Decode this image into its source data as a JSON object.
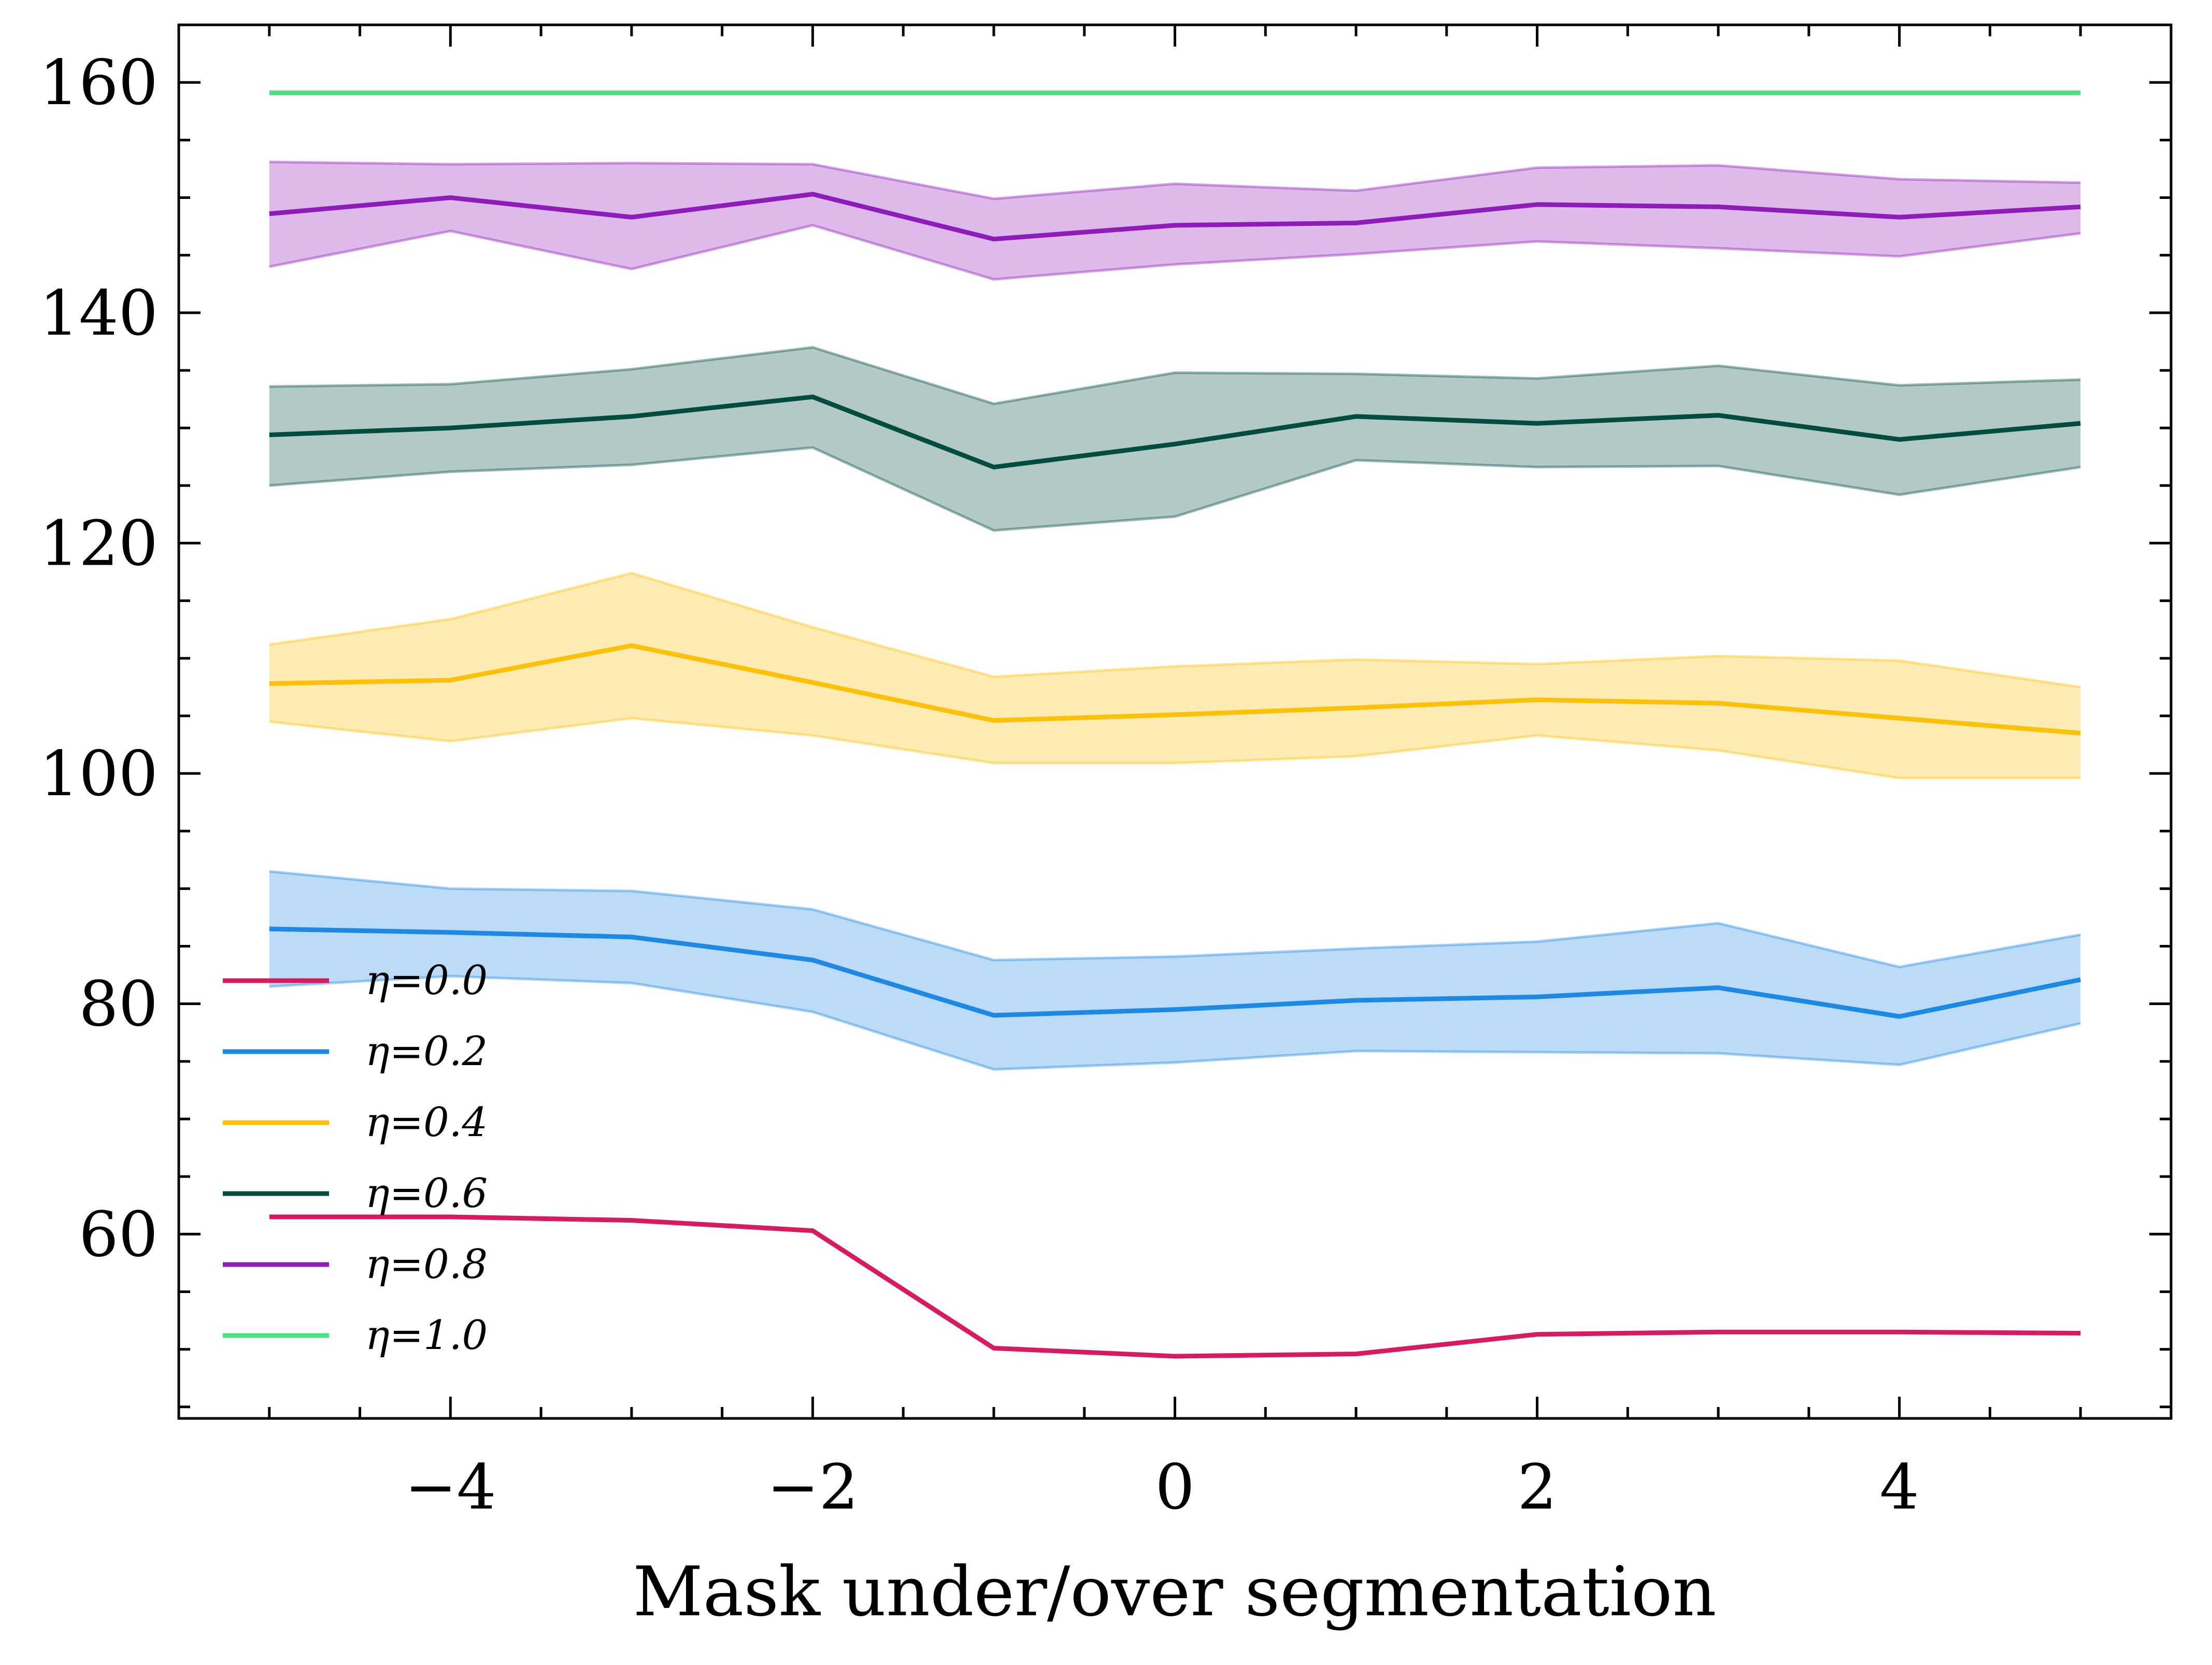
{
  "chart_data": {
    "type": "line",
    "title": "",
    "xlabel": "Mask under/over segmentation",
    "ylabel": "",
    "x": [
      -5,
      -4,
      -3,
      -2,
      -1,
      0,
      1,
      2,
      3,
      4,
      5
    ],
    "xlim": [
      -5.5,
      5.5
    ],
    "ylim": [
      44,
      165
    ],
    "xticks": [
      -4,
      -2,
      0,
      2,
      4
    ],
    "xtick_labels": [
      "−4",
      "−2",
      "0",
      "2",
      "4"
    ],
    "yticks": [
      60,
      80,
      100,
      120,
      140,
      160
    ],
    "ytick_labels": [
      "60",
      "80",
      "100",
      "120",
      "140",
      "160"
    ],
    "grid": false,
    "legend_location": "lower-left",
    "series": [
      {
        "name": "η=0.0",
        "color": "#d81b60",
        "values": [
          61.5,
          61.5,
          61.2,
          60.3,
          50.1,
          49.4,
          49.6,
          51.3,
          51.5,
          51.5,
          51.4
        ]
      },
      {
        "name": "η=0.2",
        "color": "#1e88e5",
        "values": [
          86.5,
          86.2,
          85.8,
          83.8,
          79.0,
          79.5,
          80.3,
          80.6,
          81.4,
          78.9,
          82.1
        ],
        "upper": [
          91.5,
          90.0,
          89.8,
          88.2,
          83.8,
          84.1,
          84.8,
          85.4,
          87.0,
          83.2,
          86.0
        ],
        "lower": [
          81.5,
          82.4,
          81.8,
          79.3,
          74.3,
          74.9,
          75.9,
          75.8,
          75.7,
          74.7,
          78.3
        ]
      },
      {
        "name": "η=0.4",
        "color": "#ffc107",
        "values": [
          107.8,
          108.1,
          111.1,
          107.9,
          104.6,
          105.1,
          105.7,
          106.4,
          106.1,
          104.8,
          103.5
        ],
        "upper": [
          111.2,
          113.4,
          117.4,
          112.7,
          108.4,
          109.3,
          109.9,
          109.5,
          110.2,
          109.8,
          107.5
        ],
        "lower": [
          104.5,
          102.8,
          104.8,
          103.3,
          100.9,
          100.9,
          101.5,
          103.3,
          102.0,
          99.6,
          99.6
        ]
      },
      {
        "name": "η=0.6",
        "color": "#004d40",
        "values": [
          129.4,
          130.0,
          131.0,
          132.7,
          126.6,
          128.6,
          131.0,
          130.4,
          131.1,
          129.0,
          130.4
        ],
        "upper": [
          133.6,
          133.8,
          135.1,
          137.0,
          132.1,
          134.8,
          134.7,
          134.3,
          135.4,
          133.7,
          134.2
        ],
        "lower": [
          125.0,
          126.2,
          126.8,
          128.3,
          121.1,
          122.3,
          127.2,
          126.6,
          126.7,
          124.2,
          126.6
        ]
      },
      {
        "name": "η=0.8",
        "color": "#8e1cb8",
        "values": [
          148.6,
          150.0,
          148.3,
          150.3,
          146.4,
          147.6,
          147.8,
          149.4,
          149.2,
          148.3,
          149.2
        ],
        "upper": [
          153.1,
          152.9,
          153.0,
          152.9,
          149.9,
          151.2,
          150.6,
          152.6,
          152.8,
          151.6,
          151.3
        ],
        "lower": [
          144.0,
          147.1,
          143.8,
          147.6,
          142.9,
          144.2,
          145.1,
          146.2,
          145.6,
          144.9,
          146.9
        ]
      },
      {
        "name": "η=1.0",
        "color": "#4ce17e",
        "values": [
          159.1,
          159.1,
          159.1,
          159.1,
          159.1,
          159.1,
          159.1,
          159.1,
          159.1,
          159.1,
          159.1
        ]
      }
    ]
  }
}
